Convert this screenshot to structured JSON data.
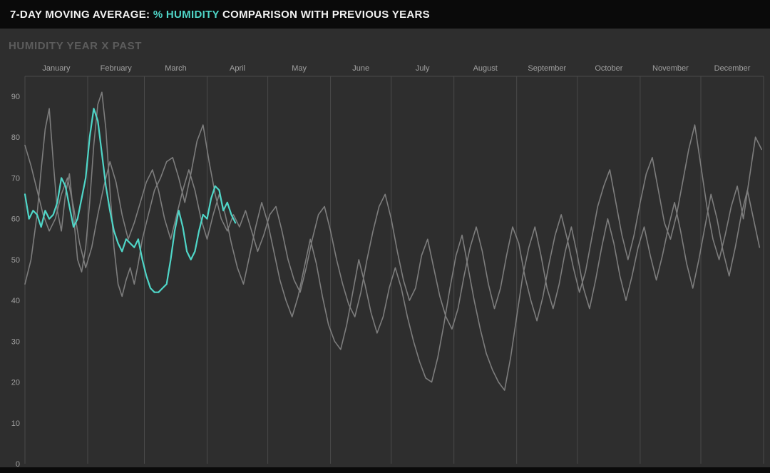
{
  "header": {
    "title_prefix": "7-DAY MOVING AVERAGE: ",
    "title_highlight": "% HUMIDITY",
    "title_suffix": " COMPARISON WITH PREVIOUS YEARS",
    "background": "#0a0a0a",
    "highlight_color": "#4fd6c8"
  },
  "chart_data": {
    "type": "line",
    "title": "HUMIDITY YEAR X PAST",
    "xlabel": "",
    "ylabel": "",
    "legend": "none",
    "grid": "vertical-month-lines-only",
    "x_axis": {
      "position": "top",
      "labels": [
        "January",
        "February",
        "March",
        "April",
        "May",
        "June",
        "July",
        "August",
        "September",
        "October",
        "November",
        "December"
      ]
    },
    "y_axis": {
      "ticks": [
        0,
        10,
        20,
        30,
        40,
        50,
        60,
        70,
        80,
        90
      ],
      "range": [
        0,
        95
      ]
    },
    "colors": {
      "background": "#2e2e2e",
      "gridline": "#4a4a4a",
      "axis_text": "#a0a0a0",
      "past_series": "#7d7d7d",
      "current_series": "#4fd6c8"
    },
    "series": [
      {
        "name": "past-year-1",
        "color": "#7d7d7d",
        "x_unit": "day-of-year",
        "points": [
          [
            1,
            44
          ],
          [
            4,
            50
          ],
          [
            7,
            61
          ],
          [
            9,
            72
          ],
          [
            11,
            82
          ],
          [
            13,
            87
          ],
          [
            15,
            74
          ],
          [
            17,
            62
          ],
          [
            19,
            57
          ],
          [
            21,
            66
          ],
          [
            23,
            71
          ],
          [
            25,
            61
          ],
          [
            27,
            50
          ],
          [
            29,
            47
          ],
          [
            31,
            53
          ],
          [
            33,
            64
          ],
          [
            35,
            78
          ],
          [
            37,
            88
          ],
          [
            39,
            91
          ],
          [
            41,
            82
          ],
          [
            43,
            67
          ],
          [
            45,
            53
          ],
          [
            47,
            44
          ],
          [
            49,
            41
          ],
          [
            51,
            45
          ],
          [
            53,
            48
          ],
          [
            55,
            44
          ],
          [
            57,
            49
          ],
          [
            59,
            55
          ],
          [
            62,
            61
          ],
          [
            65,
            67
          ],
          [
            68,
            70
          ],
          [
            71,
            74
          ],
          [
            74,
            75
          ],
          [
            77,
            70
          ],
          [
            80,
            64
          ],
          [
            83,
            71
          ],
          [
            86,
            79
          ],
          [
            89,
            83
          ],
          [
            92,
            74
          ],
          [
            95,
            66
          ],
          [
            98,
            60
          ],
          [
            101,
            57
          ],
          [
            104,
            61
          ],
          [
            107,
            58
          ],
          [
            110,
            62
          ],
          [
            113,
            57
          ],
          [
            116,
            52
          ],
          [
            119,
            56
          ],
          [
            122,
            61
          ],
          [
            125,
            63
          ],
          [
            128,
            57
          ],
          [
            131,
            50
          ],
          [
            134,
            45
          ],
          [
            137,
            42
          ],
          [
            140,
            48
          ],
          [
            143,
            55
          ],
          [
            146,
            61
          ],
          [
            149,
            63
          ],
          [
            152,
            57
          ],
          [
            155,
            50
          ],
          [
            158,
            44
          ],
          [
            161,
            39
          ],
          [
            164,
            36
          ],
          [
            167,
            42
          ],
          [
            170,
            50
          ],
          [
            173,
            57
          ],
          [
            176,
            63
          ],
          [
            179,
            66
          ],
          [
            182,
            60
          ],
          [
            185,
            52
          ],
          [
            188,
            45
          ],
          [
            191,
            40
          ],
          [
            194,
            43
          ],
          [
            197,
            51
          ],
          [
            200,
            55
          ],
          [
            203,
            48
          ],
          [
            206,
            41
          ],
          [
            209,
            36
          ],
          [
            212,
            33
          ],
          [
            215,
            38
          ],
          [
            218,
            46
          ],
          [
            221,
            53
          ],
          [
            224,
            58
          ],
          [
            227,
            52
          ],
          [
            230,
            44
          ],
          [
            233,
            38
          ],
          [
            236,
            43
          ],
          [
            239,
            51
          ],
          [
            242,
            58
          ],
          [
            245,
            54
          ],
          [
            248,
            46
          ],
          [
            251,
            40
          ],
          [
            254,
            35
          ],
          [
            257,
            41
          ],
          [
            260,
            49
          ],
          [
            263,
            56
          ],
          [
            266,
            61
          ],
          [
            269,
            55
          ],
          [
            272,
            48
          ],
          [
            275,
            42
          ],
          [
            278,
            47
          ],
          [
            281,
            55
          ],
          [
            284,
            63
          ],
          [
            287,
            68
          ],
          [
            290,
            72
          ],
          [
            293,
            64
          ],
          [
            296,
            56
          ],
          [
            299,
            50
          ],
          [
            302,
            56
          ],
          [
            305,
            64
          ],
          [
            308,
            71
          ],
          [
            311,
            75
          ],
          [
            314,
            67
          ],
          [
            317,
            59
          ],
          [
            320,
            55
          ],
          [
            323,
            61
          ],
          [
            326,
            69
          ],
          [
            329,
            77
          ],
          [
            332,
            83
          ],
          [
            335,
            73
          ],
          [
            338,
            63
          ],
          [
            341,
            55
          ],
          [
            344,
            50
          ],
          [
            347,
            56
          ],
          [
            350,
            63
          ],
          [
            353,
            68
          ],
          [
            356,
            60
          ],
          [
            359,
            70
          ],
          [
            362,
            80
          ],
          [
            365,
            77
          ]
        ]
      },
      {
        "name": "past-year-2",
        "color": "#7d7d7d",
        "x_unit": "day-of-year",
        "points": [
          [
            1,
            78
          ],
          [
            4,
            73
          ],
          [
            7,
            67
          ],
          [
            10,
            61
          ],
          [
            13,
            57
          ],
          [
            16,
            60
          ],
          [
            19,
            66
          ],
          [
            22,
            70
          ],
          [
            25,
            63
          ],
          [
            28,
            54
          ],
          [
            31,
            48
          ],
          [
            34,
            53
          ],
          [
            37,
            61
          ],
          [
            40,
            68
          ],
          [
            43,
            74
          ],
          [
            46,
            69
          ],
          [
            49,
            61
          ],
          [
            52,
            55
          ],
          [
            55,
            59
          ],
          [
            58,
            64
          ],
          [
            61,
            69
          ],
          [
            64,
            72
          ],
          [
            67,
            67
          ],
          [
            70,
            60
          ],
          [
            73,
            55
          ],
          [
            76,
            61
          ],
          [
            79,
            67
          ],
          [
            82,
            72
          ],
          [
            85,
            67
          ],
          [
            88,
            60
          ],
          [
            91,
            55
          ],
          [
            94,
            61
          ],
          [
            97,
            66
          ],
          [
            100,
            61
          ],
          [
            103,
            54
          ],
          [
            106,
            48
          ],
          [
            109,
            44
          ],
          [
            112,
            51
          ],
          [
            115,
            58
          ],
          [
            118,
            64
          ],
          [
            121,
            59
          ],
          [
            124,
            52
          ],
          [
            127,
            45
          ],
          [
            130,
            40
          ],
          [
            133,
            36
          ],
          [
            136,
            41
          ],
          [
            139,
            48
          ],
          [
            142,
            55
          ],
          [
            145,
            49
          ],
          [
            148,
            41
          ],
          [
            151,
            34
          ],
          [
            154,
            30
          ],
          [
            157,
            28
          ],
          [
            160,
            34
          ],
          [
            163,
            42
          ],
          [
            166,
            50
          ],
          [
            169,
            44
          ],
          [
            172,
            37
          ],
          [
            175,
            32
          ],
          [
            178,
            36
          ],
          [
            181,
            43
          ],
          [
            184,
            48
          ],
          [
            187,
            43
          ],
          [
            190,
            36
          ],
          [
            193,
            30
          ],
          [
            196,
            25
          ],
          [
            199,
            21
          ],
          [
            202,
            20
          ],
          [
            205,
            26
          ],
          [
            208,
            34
          ],
          [
            211,
            43
          ],
          [
            214,
            51
          ],
          [
            217,
            56
          ],
          [
            220,
            48
          ],
          [
            223,
            40
          ],
          [
            226,
            33
          ],
          [
            229,
            27
          ],
          [
            232,
            23
          ],
          [
            235,
            20
          ],
          [
            238,
            18
          ],
          [
            241,
            26
          ],
          [
            244,
            36
          ],
          [
            247,
            46
          ],
          [
            250,
            53
          ],
          [
            253,
            58
          ],
          [
            256,
            51
          ],
          [
            259,
            43
          ],
          [
            262,
            38
          ],
          [
            265,
            44
          ],
          [
            268,
            52
          ],
          [
            271,
            58
          ],
          [
            274,
            51
          ],
          [
            277,
            43
          ],
          [
            280,
            38
          ],
          [
            283,
            45
          ],
          [
            286,
            53
          ],
          [
            289,
            60
          ],
          [
            292,
            54
          ],
          [
            295,
            46
          ],
          [
            298,
            40
          ],
          [
            301,
            46
          ],
          [
            304,
            53
          ],
          [
            307,
            58
          ],
          [
            310,
            51
          ],
          [
            313,
            45
          ],
          [
            316,
            51
          ],
          [
            319,
            58
          ],
          [
            322,
            64
          ],
          [
            325,
            57
          ],
          [
            328,
            49
          ],
          [
            331,
            43
          ],
          [
            334,
            50
          ],
          [
            337,
            58
          ],
          [
            340,
            66
          ],
          [
            343,
            60
          ],
          [
            346,
            52
          ],
          [
            349,
            46
          ],
          [
            352,
            53
          ],
          [
            355,
            61
          ],
          [
            358,
            67
          ],
          [
            361,
            60
          ],
          [
            364,
            53
          ]
        ]
      },
      {
        "name": "current-year",
        "color": "#4fd6c8",
        "x_unit": "day-of-year",
        "points": [
          [
            1,
            66
          ],
          [
            3,
            60
          ],
          [
            5,
            62
          ],
          [
            7,
            61
          ],
          [
            9,
            58
          ],
          [
            11,
            62
          ],
          [
            13,
            60
          ],
          [
            15,
            61
          ],
          [
            17,
            64
          ],
          [
            19,
            70
          ],
          [
            21,
            68
          ],
          [
            23,
            63
          ],
          [
            25,
            58
          ],
          [
            27,
            60
          ],
          [
            29,
            65
          ],
          [
            31,
            70
          ],
          [
            33,
            80
          ],
          [
            35,
            87
          ],
          [
            37,
            84
          ],
          [
            39,
            76
          ],
          [
            41,
            68
          ],
          [
            43,
            62
          ],
          [
            45,
            57
          ],
          [
            47,
            54
          ],
          [
            49,
            52
          ],
          [
            51,
            55
          ],
          [
            53,
            54
          ],
          [
            55,
            53
          ],
          [
            57,
            55
          ],
          [
            59,
            50
          ],
          [
            61,
            46
          ],
          [
            63,
            43
          ],
          [
            65,
            42
          ],
          [
            67,
            42
          ],
          [
            69,
            43
          ],
          [
            71,
            44
          ],
          [
            73,
            50
          ],
          [
            75,
            57
          ],
          [
            77,
            62
          ],
          [
            79,
            58
          ],
          [
            81,
            52
          ],
          [
            83,
            50
          ],
          [
            85,
            52
          ],
          [
            87,
            57
          ],
          [
            89,
            61
          ],
          [
            91,
            60
          ],
          [
            93,
            65
          ],
          [
            95,
            68
          ],
          [
            97,
            67
          ],
          [
            99,
            62
          ],
          [
            101,
            64
          ],
          [
            103,
            61
          ],
          [
            105,
            59
          ]
        ]
      }
    ]
  }
}
